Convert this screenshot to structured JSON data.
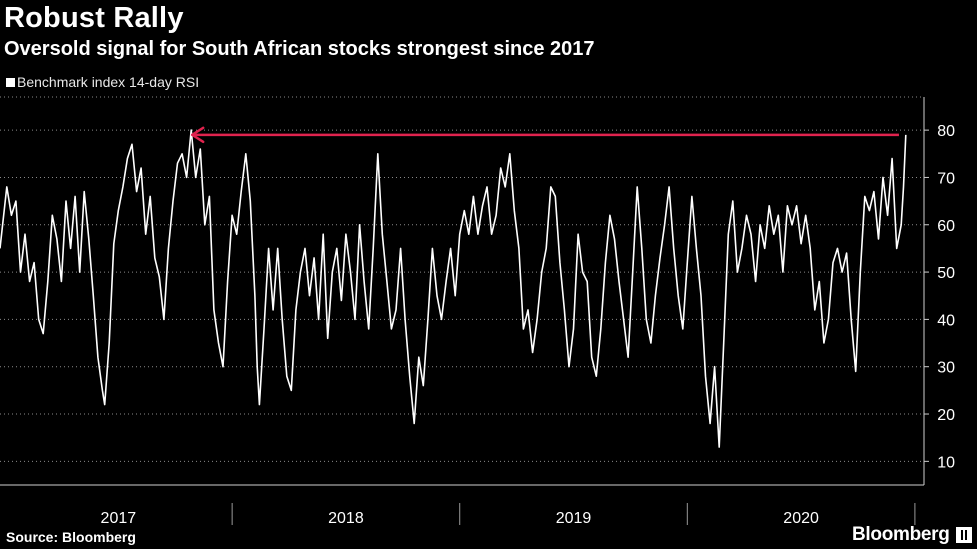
{
  "chart_data": {
    "type": "line",
    "title": "Robust Rally",
    "subtitle": "Oversold signal for South African stocks strongest since 2017",
    "legend": "Benchmark index 14-day RSI",
    "series_name": "Benchmark index 14-day RSI",
    "ylim": [
      5,
      87
    ],
    "y_ticks": [
      10,
      20,
      30,
      40,
      50,
      60,
      70,
      80
    ],
    "x_range": [
      2016.98,
      2021.04
    ],
    "x_ticks": [
      "2017",
      "2018",
      "2019",
      "2020"
    ],
    "x_tick_centers": [
      2017.5,
      2018.5,
      2019.5,
      2020.5
    ],
    "x_dividers": [
      2018.0,
      2019.0,
      2020.0,
      2021.0
    ],
    "annotation": {
      "type": "arrow",
      "y": 79,
      "from_x": 2020.93,
      "to_x": 2017.82,
      "color": "#e0234e"
    },
    "points": [
      [
        2016.98,
        55
      ],
      [
        2017.01,
        68
      ],
      [
        2017.03,
        62
      ],
      [
        2017.05,
        65
      ],
      [
        2017.07,
        50
      ],
      [
        2017.09,
        58
      ],
      [
        2017.11,
        48
      ],
      [
        2017.13,
        52
      ],
      [
        2017.15,
        40
      ],
      [
        2017.17,
        37
      ],
      [
        2017.19,
        48
      ],
      [
        2017.21,
        62
      ],
      [
        2017.23,
        57
      ],
      [
        2017.25,
        48
      ],
      [
        2017.27,
        65
      ],
      [
        2017.29,
        55
      ],
      [
        2017.31,
        66
      ],
      [
        2017.33,
        50
      ],
      [
        2017.35,
        67
      ],
      [
        2017.37,
        57
      ],
      [
        2017.39,
        45
      ],
      [
        2017.41,
        32
      ],
      [
        2017.43,
        25
      ],
      [
        2017.44,
        22
      ],
      [
        2017.46,
        35
      ],
      [
        2017.48,
        56
      ],
      [
        2017.5,
        63
      ],
      [
        2017.52,
        68
      ],
      [
        2017.54,
        74
      ],
      [
        2017.56,
        77
      ],
      [
        2017.58,
        67
      ],
      [
        2017.6,
        72
      ],
      [
        2017.62,
        58
      ],
      [
        2017.64,
        66
      ],
      [
        2017.66,
        53
      ],
      [
        2017.68,
        49
      ],
      [
        2017.7,
        40
      ],
      [
        2017.72,
        55
      ],
      [
        2017.74,
        65
      ],
      [
        2017.76,
        73
      ],
      [
        2017.78,
        75
      ],
      [
        2017.8,
        70
      ],
      [
        2017.82,
        80
      ],
      [
        2017.84,
        70
      ],
      [
        2017.86,
        76
      ],
      [
        2017.88,
        60
      ],
      [
        2017.9,
        66
      ],
      [
        2017.92,
        42
      ],
      [
        2017.94,
        35
      ],
      [
        2017.96,
        30
      ],
      [
        2017.98,
        48
      ],
      [
        2018.0,
        62
      ],
      [
        2018.02,
        58
      ],
      [
        2018.04,
        67
      ],
      [
        2018.06,
        75
      ],
      [
        2018.08,
        65
      ],
      [
        2018.1,
        45
      ],
      [
        2018.11,
        30
      ],
      [
        2018.12,
        22
      ],
      [
        2018.14,
        38
      ],
      [
        2018.16,
        55
      ],
      [
        2018.18,
        42
      ],
      [
        2018.2,
        55
      ],
      [
        2018.22,
        40
      ],
      [
        2018.24,
        28
      ],
      [
        2018.26,
        25
      ],
      [
        2018.28,
        42
      ],
      [
        2018.3,
        50
      ],
      [
        2018.32,
        55
      ],
      [
        2018.34,
        45
      ],
      [
        2018.36,
        53
      ],
      [
        2018.38,
        40
      ],
      [
        2018.4,
        58
      ],
      [
        2018.42,
        36
      ],
      [
        2018.44,
        50
      ],
      [
        2018.46,
        55
      ],
      [
        2018.48,
        44
      ],
      [
        2018.5,
        58
      ],
      [
        2018.52,
        50
      ],
      [
        2018.54,
        40
      ],
      [
        2018.56,
        60
      ],
      [
        2018.58,
        48
      ],
      [
        2018.6,
        38
      ],
      [
        2018.62,
        55
      ],
      [
        2018.64,
        75
      ],
      [
        2018.66,
        58
      ],
      [
        2018.68,
        48
      ],
      [
        2018.7,
        38
      ],
      [
        2018.72,
        42
      ],
      [
        2018.74,
        55
      ],
      [
        2018.76,
        40
      ],
      [
        2018.78,
        28
      ],
      [
        2018.8,
        18
      ],
      [
        2018.82,
        32
      ],
      [
        2018.84,
        26
      ],
      [
        2018.86,
        40
      ],
      [
        2018.88,
        55
      ],
      [
        2018.9,
        45
      ],
      [
        2018.92,
        40
      ],
      [
        2018.94,
        48
      ],
      [
        2018.96,
        55
      ],
      [
        2018.98,
        45
      ],
      [
        2019.0,
        58
      ],
      [
        2019.02,
        63
      ],
      [
        2019.04,
        58
      ],
      [
        2019.06,
        66
      ],
      [
        2019.08,
        58
      ],
      [
        2019.1,
        64
      ],
      [
        2019.12,
        68
      ],
      [
        2019.14,
        58
      ],
      [
        2019.16,
        62
      ],
      [
        2019.18,
        72
      ],
      [
        2019.2,
        68
      ],
      [
        2019.22,
        75
      ],
      [
        2019.24,
        63
      ],
      [
        2019.26,
        55
      ],
      [
        2019.28,
        38
      ],
      [
        2019.3,
        42
      ],
      [
        2019.32,
        33
      ],
      [
        2019.34,
        40
      ],
      [
        2019.36,
        50
      ],
      [
        2019.38,
        55
      ],
      [
        2019.4,
        68
      ],
      [
        2019.42,
        66
      ],
      [
        2019.44,
        52
      ],
      [
        2019.46,
        42
      ],
      [
        2019.48,
        30
      ],
      [
        2019.5,
        38
      ],
      [
        2019.52,
        58
      ],
      [
        2019.54,
        50
      ],
      [
        2019.56,
        48
      ],
      [
        2019.58,
        32
      ],
      [
        2019.6,
        28
      ],
      [
        2019.62,
        38
      ],
      [
        2019.64,
        52
      ],
      [
        2019.66,
        62
      ],
      [
        2019.68,
        57
      ],
      [
        2019.7,
        48
      ],
      [
        2019.72,
        40
      ],
      [
        2019.74,
        32
      ],
      [
        2019.76,
        50
      ],
      [
        2019.78,
        68
      ],
      [
        2019.8,
        55
      ],
      [
        2019.82,
        40
      ],
      [
        2019.84,
        35
      ],
      [
        2019.86,
        45
      ],
      [
        2019.88,
        53
      ],
      [
        2019.9,
        60
      ],
      [
        2019.92,
        68
      ],
      [
        2019.94,
        55
      ],
      [
        2019.96,
        45
      ],
      [
        2019.98,
        38
      ],
      [
        2020.0,
        52
      ],
      [
        2020.02,
        66
      ],
      [
        2020.04,
        55
      ],
      [
        2020.06,
        45
      ],
      [
        2020.08,
        28
      ],
      [
        2020.1,
        18
      ],
      [
        2020.12,
        30
      ],
      [
        2020.14,
        13
      ],
      [
        2020.16,
        35
      ],
      [
        2020.18,
        58
      ],
      [
        2020.2,
        65
      ],
      [
        2020.22,
        50
      ],
      [
        2020.24,
        55
      ],
      [
        2020.26,
        62
      ],
      [
        2020.28,
        58
      ],
      [
        2020.3,
        48
      ],
      [
        2020.32,
        60
      ],
      [
        2020.34,
        55
      ],
      [
        2020.36,
        64
      ],
      [
        2020.38,
        58
      ],
      [
        2020.4,
        62
      ],
      [
        2020.42,
        50
      ],
      [
        2020.44,
        64
      ],
      [
        2020.46,
        60
      ],
      [
        2020.48,
        64
      ],
      [
        2020.5,
        56
      ],
      [
        2020.52,
        62
      ],
      [
        2020.54,
        55
      ],
      [
        2020.56,
        42
      ],
      [
        2020.58,
        48
      ],
      [
        2020.6,
        35
      ],
      [
        2020.62,
        40
      ],
      [
        2020.64,
        52
      ],
      [
        2020.66,
        55
      ],
      [
        2020.68,
        50
      ],
      [
        2020.7,
        54
      ],
      [
        2020.72,
        40
      ],
      [
        2020.74,
        29
      ],
      [
        2020.76,
        50
      ],
      [
        2020.78,
        66
      ],
      [
        2020.8,
        63
      ],
      [
        2020.82,
        67
      ],
      [
        2020.84,
        57
      ],
      [
        2020.86,
        70
      ],
      [
        2020.88,
        62
      ],
      [
        2020.9,
        74
      ],
      [
        2020.92,
        55
      ],
      [
        2020.94,
        60
      ],
      [
        2020.95,
        68
      ],
      [
        2020.96,
        79
      ]
    ]
  },
  "footer": {
    "source": "Source: Bloomberg",
    "brand": "Bloomberg"
  }
}
